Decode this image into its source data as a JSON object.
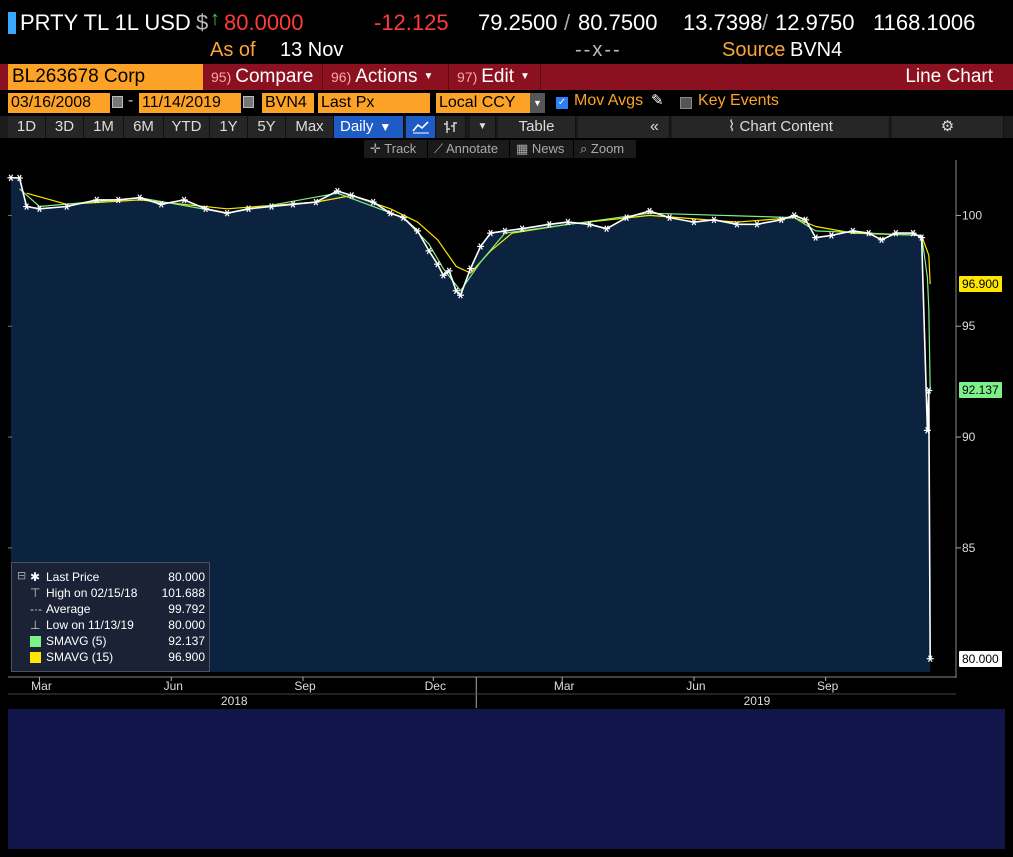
{
  "header": {
    "ticker": "PRTY TL 1L USD",
    "currency_symbol": "$",
    "last_price": "80.0000",
    "change": "-12.125",
    "bid": "79.2500",
    "ask": "80.7500",
    "yield_a": "13.7398",
    "yield_b": "12.9750",
    "spread": "1168.1006",
    "as_of_label": "As of",
    "as_of_date": "13 Nov",
    "mid_dashes": "--x--",
    "source_label": "Source",
    "source": "BVN4",
    "slash": "/"
  },
  "function_bar": {
    "security": "BL263678 Corp",
    "compare_num": "95)",
    "compare_label": "Compare",
    "actions_num": "96)",
    "actions_label": "Actions",
    "edit_num": "97)",
    "edit_label": "Edit",
    "chart_type": "Line Chart"
  },
  "settings": {
    "start_date": "03/16/2008",
    "dash": "-",
    "end_date": "11/14/2019",
    "source": "BVN4",
    "field": "Last Px",
    "currency": "Local CCY",
    "mov_avgs_label": "Mov Avgs",
    "mov_avgs_checked": true,
    "key_events_label": "Key Events",
    "key_events_checked": false
  },
  "toolbar": {
    "periods": [
      "1D",
      "3D",
      "1M",
      "6M",
      "YTD",
      "1Y",
      "5Y",
      "Max"
    ],
    "frequency": "Daily",
    "table_label": "Table",
    "chart_content_label": "Chart Content"
  },
  "chart_tools": {
    "track": "Track",
    "annotate": "Annotate",
    "news": "News",
    "zoom": "Zoom"
  },
  "legend": {
    "last_price_label": "Last Price",
    "last_price_value": "80.000",
    "high_label": "High on 02/15/18",
    "high_value": "101.688",
    "average_label": "Average",
    "average_value": "99.792",
    "low_label": "Low on 11/13/19",
    "low_value": "80.000",
    "sma5_label": "SMAVG (5)",
    "sma5_value": "92.137",
    "sma15_label": "SMAVG (15)",
    "sma15_value": "96.900"
  },
  "colors": {
    "background": "#000000",
    "plot_area": "#0c2340",
    "price_line": "#ffffff",
    "sma5": "#7ef08a",
    "sma15": "#ffe600",
    "accent_orange": "#fca327",
    "function_bar": "#8c1120",
    "positive": "#3ec94c",
    "negative": "#ff3b3b"
  },
  "chart_data": {
    "type": "line",
    "title": "",
    "xlabel": "",
    "ylabel": "",
    "y_ticks": [
      85,
      90,
      95,
      100
    ],
    "ylim": [
      79.4,
      102.5
    ],
    "y_axis_side": "right",
    "month_ticks": [
      {
        "label": "Mar",
        "date": "2018-03-01"
      },
      {
        "label": "Jun",
        "date": "2018-06-01"
      },
      {
        "label": "Sep",
        "date": "2018-09-01"
      },
      {
        "label": "Dec",
        "date": "2018-12-01"
      },
      {
        "label": "Mar",
        "date": "2019-03-01"
      },
      {
        "label": "Jun",
        "date": "2019-06-01"
      },
      {
        "label": "Sep",
        "date": "2019-09-01"
      }
    ],
    "year_labels": [
      {
        "label": "2018",
        "date": "2018-07-15"
      },
      {
        "label": "2019",
        "date": "2019-07-15"
      }
    ],
    "year_divider": "2018-12-31",
    "xlim": [
      "2018-02-07",
      "2019-12-01"
    ],
    "grid": false,
    "legend_position": "bottom-left",
    "series": [
      {
        "name": "Last Price",
        "color": "#ffffff",
        "points": [
          [
            "2018-02-09",
            101.7
          ],
          [
            "2018-02-15",
            101.688
          ],
          [
            "2018-02-20",
            100.4
          ],
          [
            "2018-03-01",
            100.3
          ],
          [
            "2018-03-20",
            100.4
          ],
          [
            "2018-04-10",
            100.7
          ],
          [
            "2018-04-25",
            100.7
          ],
          [
            "2018-05-10",
            100.8
          ],
          [
            "2018-05-25",
            100.5
          ],
          [
            "2018-06-10",
            100.7
          ],
          [
            "2018-06-25",
            100.3
          ],
          [
            "2018-07-10",
            100.1
          ],
          [
            "2018-07-25",
            100.3
          ],
          [
            "2018-08-10",
            100.4
          ],
          [
            "2018-08-25",
            100.5
          ],
          [
            "2018-09-10",
            100.6
          ],
          [
            "2018-09-25",
            101.1
          ],
          [
            "2018-10-05",
            100.9
          ],
          [
            "2018-10-20",
            100.6
          ],
          [
            "2018-11-01",
            100.1
          ],
          [
            "2018-11-10",
            99.9
          ],
          [
            "2018-11-20",
            99.3
          ],
          [
            "2018-11-28",
            98.4
          ],
          [
            "2018-12-04",
            97.8
          ],
          [
            "2018-12-08",
            97.3
          ],
          [
            "2018-12-12",
            97.5
          ],
          [
            "2018-12-17",
            96.6
          ],
          [
            "2018-12-20",
            96.4
          ],
          [
            "2018-12-27",
            97.6
          ],
          [
            "2019-01-03",
            98.6
          ],
          [
            "2019-01-10",
            99.2
          ],
          [
            "2019-01-20",
            99.3
          ],
          [
            "2019-02-01",
            99.4
          ],
          [
            "2019-02-20",
            99.6
          ],
          [
            "2019-03-05",
            99.7
          ],
          [
            "2019-03-20",
            99.6
          ],
          [
            "2019-04-01",
            99.4
          ],
          [
            "2019-04-15",
            99.9
          ],
          [
            "2019-05-01",
            100.2
          ],
          [
            "2019-05-15",
            99.9
          ],
          [
            "2019-06-01",
            99.7
          ],
          [
            "2019-06-15",
            99.8
          ],
          [
            "2019-07-01",
            99.6
          ],
          [
            "2019-07-15",
            99.6
          ],
          [
            "2019-08-01",
            99.8
          ],
          [
            "2019-08-10",
            100.0
          ],
          [
            "2019-08-18",
            99.8
          ],
          [
            "2019-08-25",
            99.0
          ],
          [
            "2019-09-05",
            99.1
          ],
          [
            "2019-09-20",
            99.3
          ],
          [
            "2019-10-01",
            99.2
          ],
          [
            "2019-10-10",
            98.9
          ],
          [
            "2019-10-20",
            99.2
          ],
          [
            "2019-11-01",
            99.2
          ],
          [
            "2019-11-07",
            99.0
          ],
          [
            "2019-11-11",
            90.3
          ],
          [
            "2019-11-12",
            92.1
          ],
          [
            "2019-11-13",
            80.0
          ]
        ]
      },
      {
        "name": "SMAVG (15)",
        "color": "#ffe600",
        "points": [
          [
            "2018-02-20",
            101.0
          ],
          [
            "2018-03-20",
            100.5
          ],
          [
            "2018-05-10",
            100.7
          ],
          [
            "2018-07-10",
            100.3
          ],
          [
            "2018-09-10",
            100.6
          ],
          [
            "2018-10-05",
            100.9
          ],
          [
            "2018-11-01",
            100.3
          ],
          [
            "2018-11-20",
            99.7
          ],
          [
            "2018-12-04",
            98.9
          ],
          [
            "2018-12-17",
            97.7
          ],
          [
            "2018-12-27",
            97.4
          ],
          [
            "2019-01-10",
            98.4
          ],
          [
            "2019-01-25",
            99.2
          ],
          [
            "2019-03-05",
            99.6
          ],
          [
            "2019-05-01",
            100.0
          ],
          [
            "2019-07-01",
            99.7
          ],
          [
            "2019-08-10",
            99.9
          ],
          [
            "2019-08-25",
            99.5
          ],
          [
            "2019-09-20",
            99.2
          ],
          [
            "2019-11-07",
            99.1
          ],
          [
            "2019-11-12",
            98.2
          ],
          [
            "2019-11-13",
            96.9
          ]
        ]
      },
      {
        "name": "SMAVG (5)",
        "color": "#7ef08a",
        "points": [
          [
            "2018-02-15",
            101.2
          ],
          [
            "2018-03-01",
            100.4
          ],
          [
            "2018-05-10",
            100.8
          ],
          [
            "2018-07-10",
            100.1
          ],
          [
            "2018-09-25",
            101.0
          ],
          [
            "2018-11-10",
            99.9
          ],
          [
            "2018-11-28",
            98.7
          ],
          [
            "2018-12-08",
            97.6
          ],
          [
            "2018-12-20",
            96.6
          ],
          [
            "2019-01-03",
            97.9
          ],
          [
            "2019-01-20",
            99.2
          ],
          [
            "2019-05-01",
            100.1
          ],
          [
            "2019-08-10",
            99.9
          ],
          [
            "2019-08-25",
            99.3
          ],
          [
            "2019-11-07",
            99.1
          ],
          [
            "2019-11-11",
            97.2
          ],
          [
            "2019-11-12",
            95.8
          ],
          [
            "2019-11-13",
            92.137
          ]
        ]
      }
    ],
    "value_tags": [
      {
        "value": 96.9,
        "label": "96.900",
        "color": "#ffe600"
      },
      {
        "value": 92.137,
        "label": "92.137",
        "color": "#7ef08a"
      },
      {
        "value": 80.0,
        "label": "80.000",
        "color": "#ffffff"
      }
    ]
  }
}
